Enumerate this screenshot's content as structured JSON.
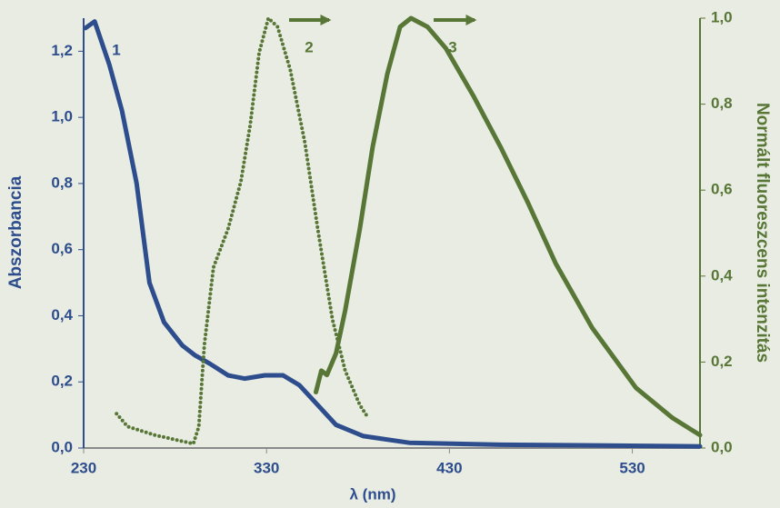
{
  "chart_data": {
    "type": "line",
    "xlabel": "λ (nm)",
    "ylabel": "Abszorbancia",
    "y2label": "Normált fluoreszcens intenzitás",
    "xlim": [
      230,
      567
    ],
    "xticks": [
      230,
      330,
      430,
      530
    ],
    "ylim": [
      0,
      1.3
    ],
    "yticks": [
      {
        "value": 0,
        "label": "0,0"
      },
      {
        "value": 0.2,
        "label": "0,2"
      },
      {
        "value": 0.4,
        "label": "0,4"
      },
      {
        "value": 0.6,
        "label": "0,6"
      },
      {
        "value": 0.8,
        "label": "0,8"
      },
      {
        "value": 1.0,
        "label": "1,0"
      },
      {
        "value": 1.2,
        "label": "1,2"
      }
    ],
    "y2lim": [
      0,
      1.0
    ],
    "y2ticks": [
      {
        "value": 0,
        "label": "0,0"
      },
      {
        "value": 0.2,
        "label": "0,2"
      },
      {
        "value": 0.4,
        "label": "0,4"
      },
      {
        "value": 0.6,
        "label": "0,6"
      },
      {
        "value": 0.8,
        "label": "0,8"
      },
      {
        "value": 1.0,
        "label": "1,0"
      }
    ],
    "series": [
      {
        "name": "1",
        "color": "#2e4d8c",
        "axis": "y",
        "style": "solid",
        "x": [
          231,
          236,
          244,
          251,
          259,
          266,
          274,
          284,
          291,
          299,
          309,
          318,
          329,
          339,
          348,
          358,
          368,
          383,
          408,
          458,
          508,
          567
        ],
        "values": [
          1.27,
          1.29,
          1.16,
          1.02,
          0.8,
          0.5,
          0.38,
          0.31,
          0.28,
          0.255,
          0.22,
          0.21,
          0.22,
          0.22,
          0.19,
          0.13,
          0.07,
          0.036,
          0.016,
          0.01,
          0.008,
          0.005
        ]
      },
      {
        "name": "2",
        "color": "#587636",
        "axis": "y2",
        "style": "dotted",
        "x": [
          248,
          254,
          269,
          290,
          293,
          296,
          301,
          309,
          316,
          321,
          326,
          331,
          336,
          343,
          351,
          358,
          366,
          373,
          381,
          385
        ],
        "values": [
          0.08,
          0.05,
          0.03,
          0.01,
          0.05,
          0.24,
          0.42,
          0.51,
          0.62,
          0.75,
          0.92,
          1.0,
          0.98,
          0.88,
          0.71,
          0.51,
          0.3,
          0.18,
          0.1,
          0.074
        ]
      },
      {
        "name": "3",
        "color": "#587636",
        "axis": "y2",
        "style": "solid",
        "x": [
          357,
          360,
          363,
          368,
          373,
          381,
          388,
          396,
          403,
          409,
          418,
          428,
          443,
          458,
          473,
          488,
          508,
          532,
          552,
          567
        ],
        "values": [
          0.13,
          0.18,
          0.17,
          0.22,
          0.32,
          0.51,
          0.7,
          0.87,
          0.98,
          1.0,
          0.98,
          0.93,
          0.82,
          0.7,
          0.57,
          0.43,
          0.28,
          0.14,
          0.07,
          0.03
        ]
      }
    ]
  }
}
